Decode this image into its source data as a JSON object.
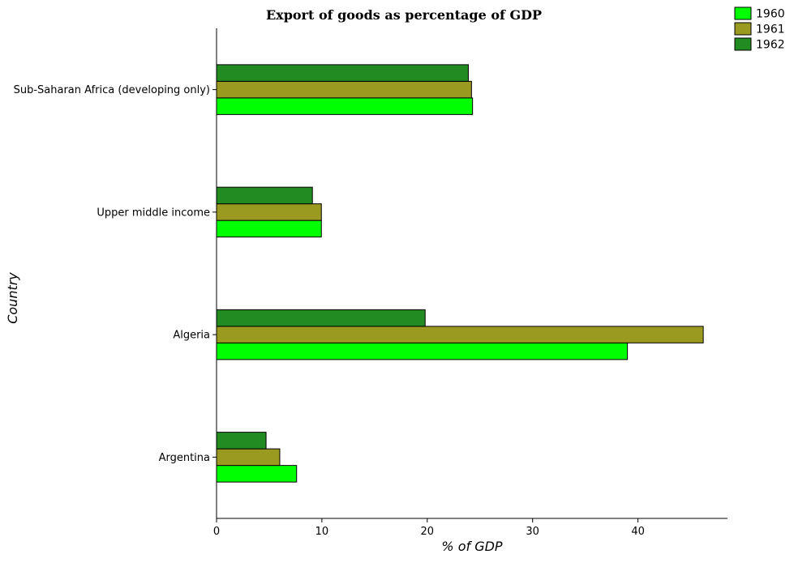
{
  "chart_data": {
    "type": "bar",
    "orientation": "horizontal",
    "title": "Export of goods as percentage of GDP",
    "xlabel": "% of GDP",
    "ylabel": "Country",
    "categories": [
      "Sub-Saharan Africa (developing only)",
      "Upper middle income",
      "Algeria",
      "Argentina"
    ],
    "series": [
      {
        "name": "1960",
        "color": "#00ff00",
        "values": [
          24.3,
          9.95,
          39.0,
          7.6
        ]
      },
      {
        "name": "1961",
        "color": "#9a9a20",
        "values": [
          24.2,
          9.95,
          46.2,
          6.0
        ]
      },
      {
        "name": "1962",
        "color": "#228b22",
        "values": [
          23.9,
          9.1,
          19.8,
          4.7
        ]
      }
    ],
    "xlim": [
      0,
      48.5
    ],
    "xticks": [
      0,
      10,
      20,
      30,
      40
    ],
    "legend_position": "top-right",
    "grid": false
  }
}
